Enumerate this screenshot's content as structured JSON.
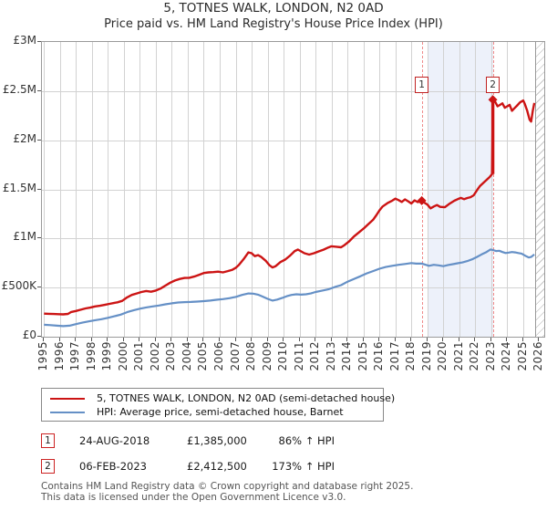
{
  "title": "5, TOTNES WALK, LONDON, N2 0AD",
  "subtitle": "Price paid vs. HM Land Registry's House Price Index (HPI)",
  "legend": {
    "items": [
      {
        "label": "5, TOTNES WALK, LONDON, N2 0AD (semi-detached house)",
        "color": "#cc1414"
      },
      {
        "label": "HPI: Average price, semi-detached house, Barnet",
        "color": "#6590c6"
      }
    ]
  },
  "annotations": [
    {
      "num": "1",
      "date": "24-AUG-2018",
      "price": "£1,385,000",
      "vs_hpi": "86% ↑ HPI"
    },
    {
      "num": "2",
      "date": "06-FEB-2023",
      "price": "£2,412,500",
      "vs_hpi": "173% ↑ HPI"
    }
  ],
  "footer": {
    "line1": "Contains HM Land Registry data © Crown copyright and database right 2025.",
    "line2": "This data is licensed under the Open Government Licence v3.0."
  },
  "chart_data": {
    "type": "line",
    "title": "5, TOTNES WALK, LONDON, N2 0AD",
    "xlim": [
      1994.87,
      2026.32
    ],
    "ylim": [
      0,
      3
    ],
    "grid": true,
    "y_axis": {
      "unit": "£ million",
      "ticks": [
        {
          "label": "£3M",
          "value": 3
        },
        {
          "label": "£2.5M",
          "value": 2.5
        },
        {
          "label": "£2M",
          "value": 2
        },
        {
          "label": "£1.5M",
          "value": 1.5
        },
        {
          "label": "£1M",
          "value": 1
        },
        {
          "label": "£500K",
          "value": 0.5
        },
        {
          "label": "£0",
          "value": 0
        }
      ]
    },
    "x_axis": {
      "labels": [
        "1995",
        "1996",
        "1997",
        "1998",
        "1999",
        "2000",
        "2001",
        "2002",
        "2003",
        "2004",
        "2005",
        "2006",
        "2007",
        "2008",
        "2009",
        "2010",
        "2011",
        "2012",
        "2013",
        "2014",
        "2015",
        "2016",
        "2017",
        "2018",
        "2019",
        "2020",
        "2021",
        "2022",
        "2023",
        "2024",
        "2025",
        "2026"
      ]
    },
    "shaded_region": {
      "from": 2019.05,
      "to": 2023.1
    },
    "no_data_hatch_from": 2025.75,
    "markers": [
      {
        "num": "1",
        "year": 2018.65,
        "value": 1.385,
        "shape": "diamond"
      },
      {
        "num": "2",
        "year": 2023.1,
        "value": 2.4125,
        "shape": "diamond"
      }
    ],
    "series": [
      {
        "name": "HPI: Average price, semi-detached house, Barnet",
        "color": "#6590c6",
        "width": 2.2,
        "points": [
          [
            1995.0,
            0.122
          ],
          [
            1995.4,
            0.118
          ],
          [
            1995.8,
            0.112
          ],
          [
            1996.2,
            0.108
          ],
          [
            1996.6,
            0.112
          ],
          [
            1997.0,
            0.128
          ],
          [
            1997.4,
            0.143
          ],
          [
            1997.8,
            0.156
          ],
          [
            1998.2,
            0.168
          ],
          [
            1998.6,
            0.178
          ],
          [
            1999.0,
            0.192
          ],
          [
            1999.4,
            0.208
          ],
          [
            1999.8,
            0.225
          ],
          [
            2000.2,
            0.25
          ],
          [
            2000.6,
            0.268
          ],
          [
            2001.0,
            0.285
          ],
          [
            2001.4,
            0.298
          ],
          [
            2001.8,
            0.308
          ],
          [
            2002.2,
            0.318
          ],
          [
            2002.6,
            0.33
          ],
          [
            2003.0,
            0.34
          ],
          [
            2003.4,
            0.348
          ],
          [
            2003.8,
            0.352
          ],
          [
            2004.2,
            0.354
          ],
          [
            2004.6,
            0.358
          ],
          [
            2005.0,
            0.362
          ],
          [
            2005.4,
            0.368
          ],
          [
            2005.8,
            0.376
          ],
          [
            2006.2,
            0.383
          ],
          [
            2006.6,
            0.392
          ],
          [
            2007.0,
            0.405
          ],
          [
            2007.4,
            0.425
          ],
          [
            2007.8,
            0.44
          ],
          [
            2008.1,
            0.438
          ],
          [
            2008.4,
            0.428
          ],
          [
            2008.7,
            0.408
          ],
          [
            2009.0,
            0.385
          ],
          [
            2009.3,
            0.368
          ],
          [
            2009.6,
            0.378
          ],
          [
            2009.9,
            0.394
          ],
          [
            2010.2,
            0.412
          ],
          [
            2010.5,
            0.425
          ],
          [
            2010.8,
            0.432
          ],
          [
            2011.1,
            0.428
          ],
          [
            2011.4,
            0.432
          ],
          [
            2011.7,
            0.44
          ],
          [
            2012.0,
            0.455
          ],
          [
            2012.4,
            0.468
          ],
          [
            2012.8,
            0.482
          ],
          [
            2013.2,
            0.505
          ],
          [
            2013.6,
            0.525
          ],
          [
            2014.0,
            0.56
          ],
          [
            2014.4,
            0.588
          ],
          [
            2014.8,
            0.615
          ],
          [
            2015.2,
            0.645
          ],
          [
            2015.6,
            0.668
          ],
          [
            2016.0,
            0.692
          ],
          [
            2016.4,
            0.71
          ],
          [
            2016.8,
            0.722
          ],
          [
            2017.2,
            0.732
          ],
          [
            2017.6,
            0.74
          ],
          [
            2018.0,
            0.75
          ],
          [
            2018.3,
            0.744
          ],
          [
            2018.65,
            0.745
          ],
          [
            2018.9,
            0.732
          ],
          [
            2019.1,
            0.722
          ],
          [
            2019.4,
            0.732
          ],
          [
            2019.7,
            0.726
          ],
          [
            2020.0,
            0.718
          ],
          [
            2020.3,
            0.73
          ],
          [
            2020.6,
            0.738
          ],
          [
            2020.9,
            0.748
          ],
          [
            2021.2,
            0.756
          ],
          [
            2021.5,
            0.77
          ],
          [
            2021.8,
            0.788
          ],
          [
            2022.1,
            0.812
          ],
          [
            2022.4,
            0.838
          ],
          [
            2022.7,
            0.862
          ],
          [
            2022.95,
            0.888
          ],
          [
            2023.1,
            0.882
          ],
          [
            2023.3,
            0.872
          ],
          [
            2023.5,
            0.875
          ],
          [
            2023.7,
            0.862
          ],
          [
            2023.9,
            0.852
          ],
          [
            2024.1,
            0.856
          ],
          [
            2024.3,
            0.862
          ],
          [
            2024.5,
            0.858
          ],
          [
            2024.7,
            0.852
          ],
          [
            2024.9,
            0.846
          ],
          [
            2025.05,
            0.832
          ],
          [
            2025.2,
            0.818
          ],
          [
            2025.35,
            0.806
          ],
          [
            2025.5,
            0.812
          ],
          [
            2025.7,
            0.838
          ]
        ]
      },
      {
        "name": "5, TOTNES WALK, LONDON, N2 0AD (semi-detached house)",
        "color": "#cc1414",
        "width": 2.4,
        "points": [
          [
            1995.0,
            0.235
          ],
          [
            1995.3,
            0.233
          ],
          [
            1995.6,
            0.231
          ],
          [
            1995.9,
            0.229
          ],
          [
            1996.2,
            0.228
          ],
          [
            1996.5,
            0.232
          ],
          [
            1996.7,
            0.252
          ],
          [
            1997.0,
            0.262
          ],
          [
            1997.3,
            0.275
          ],
          [
            1997.6,
            0.288
          ],
          [
            1997.9,
            0.296
          ],
          [
            1998.2,
            0.308
          ],
          [
            1998.5,
            0.315
          ],
          [
            1998.8,
            0.324
          ],
          [
            1999.1,
            0.334
          ],
          [
            1999.4,
            0.345
          ],
          [
            1999.6,
            0.35
          ],
          [
            1999.9,
            0.365
          ],
          [
            2000.2,
            0.4
          ],
          [
            2000.5,
            0.425
          ],
          [
            2000.8,
            0.44
          ],
          [
            2001.1,
            0.455
          ],
          [
            2001.4,
            0.465
          ],
          [
            2001.7,
            0.458
          ],
          [
            2002.0,
            0.47
          ],
          [
            2002.3,
            0.49
          ],
          [
            2002.6,
            0.52
          ],
          [
            2002.9,
            0.55
          ],
          [
            2003.2,
            0.572
          ],
          [
            2003.5,
            0.588
          ],
          [
            2003.8,
            0.598
          ],
          [
            2004.1,
            0.6
          ],
          [
            2004.4,
            0.612
          ],
          [
            2004.7,
            0.63
          ],
          [
            2005.0,
            0.648
          ],
          [
            2005.3,
            0.655
          ],
          [
            2005.6,
            0.658
          ],
          [
            2005.9,
            0.662
          ],
          [
            2006.2,
            0.655
          ],
          [
            2006.5,
            0.668
          ],
          [
            2006.8,
            0.682
          ],
          [
            2007.0,
            0.7
          ],
          [
            2007.2,
            0.73
          ],
          [
            2007.5,
            0.79
          ],
          [
            2007.8,
            0.858
          ],
          [
            2008.0,
            0.85
          ],
          [
            2008.2,
            0.82
          ],
          [
            2008.4,
            0.83
          ],
          [
            2008.6,
            0.812
          ],
          [
            2008.9,
            0.77
          ],
          [
            2009.1,
            0.73
          ],
          [
            2009.3,
            0.705
          ],
          [
            2009.5,
            0.718
          ],
          [
            2009.8,
            0.76
          ],
          [
            2010.1,
            0.785
          ],
          [
            2010.4,
            0.825
          ],
          [
            2010.7,
            0.872
          ],
          [
            2010.9,
            0.887
          ],
          [
            2011.1,
            0.868
          ],
          [
            2011.3,
            0.85
          ],
          [
            2011.6,
            0.836
          ],
          [
            2011.9,
            0.85
          ],
          [
            2012.2,
            0.868
          ],
          [
            2012.5,
            0.886
          ],
          [
            2012.8,
            0.908
          ],
          [
            2013.0,
            0.92
          ],
          [
            2013.3,
            0.916
          ],
          [
            2013.6,
            0.91
          ],
          [
            2013.8,
            0.932
          ],
          [
            2014.1,
            0.97
          ],
          [
            2014.4,
            1.02
          ],
          [
            2014.7,
            1.06
          ],
          [
            2015.0,
            1.1
          ],
          [
            2015.3,
            1.145
          ],
          [
            2015.6,
            1.19
          ],
          [
            2015.8,
            1.235
          ],
          [
            2016.0,
            1.285
          ],
          [
            2016.2,
            1.325
          ],
          [
            2016.5,
            1.36
          ],
          [
            2016.8,
            1.385
          ],
          [
            2017.0,
            1.405
          ],
          [
            2017.2,
            1.39
          ],
          [
            2017.4,
            1.372
          ],
          [
            2017.6,
            1.398
          ],
          [
            2017.8,
            1.378
          ],
          [
            2018.0,
            1.356
          ],
          [
            2018.2,
            1.388
          ],
          [
            2018.4,
            1.37
          ],
          [
            2018.65,
            1.385
          ],
          [
            2018.8,
            1.365
          ],
          [
            2019.0,
            1.345
          ],
          [
            2019.2,
            1.306
          ],
          [
            2019.4,
            1.325
          ],
          [
            2019.6,
            1.34
          ],
          [
            2019.8,
            1.322
          ],
          [
            2020.1,
            1.318
          ],
          [
            2020.4,
            1.355
          ],
          [
            2020.7,
            1.385
          ],
          [
            2020.9,
            1.4
          ],
          [
            2021.1,
            1.413
          ],
          [
            2021.3,
            1.4
          ],
          [
            2021.5,
            1.412
          ],
          [
            2021.7,
            1.42
          ],
          [
            2021.9,
            1.44
          ],
          [
            2022.1,
            1.49
          ],
          [
            2022.3,
            1.535
          ],
          [
            2022.5,
            1.565
          ],
          [
            2022.7,
            1.595
          ],
          [
            2022.9,
            1.625
          ],
          [
            2023.05,
            1.655
          ],
          [
            2023.1,
            2.4125
          ],
          [
            2023.25,
            2.39
          ],
          [
            2023.4,
            2.345
          ],
          [
            2023.55,
            2.36
          ],
          [
            2023.7,
            2.375
          ],
          [
            2023.85,
            2.33
          ],
          [
            2024.0,
            2.345
          ],
          [
            2024.15,
            2.36
          ],
          [
            2024.3,
            2.3
          ],
          [
            2024.45,
            2.325
          ],
          [
            2024.6,
            2.35
          ],
          [
            2024.8,
            2.385
          ],
          [
            2025.0,
            2.405
          ],
          [
            2025.1,
            2.37
          ],
          [
            2025.25,
            2.3
          ],
          [
            2025.4,
            2.21
          ],
          [
            2025.5,
            2.19
          ],
          [
            2025.6,
            2.3
          ],
          [
            2025.7,
            2.38
          ]
        ]
      }
    ]
  }
}
